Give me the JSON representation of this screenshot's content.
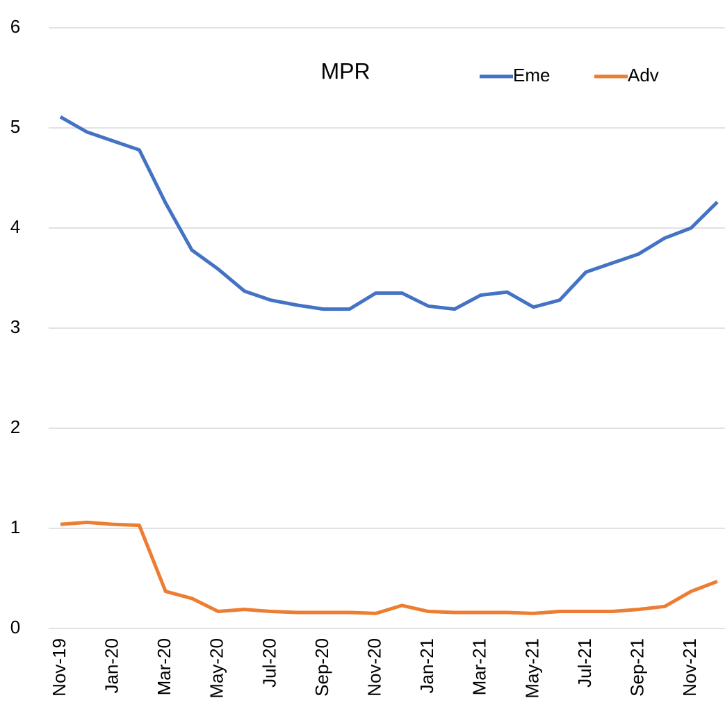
{
  "chart_data": {
    "type": "line",
    "title": "MPR",
    "categories": [
      "Nov-19",
      null,
      "Jan-20",
      null,
      "Mar-20",
      null,
      "May-20",
      null,
      "Jul-20",
      null,
      "Sep-20",
      null,
      "Nov-20",
      null,
      "Jan-21",
      null,
      "Mar-21",
      null,
      "May-21",
      null,
      "Jul-21",
      null,
      "Sep-21",
      null,
      "Nov-21",
      null
    ],
    "series": [
      {
        "name": "Eme",
        "color": "#4472c4",
        "values": [
          5.11,
          4.96,
          4.87,
          4.78,
          4.25,
          3.78,
          3.59,
          3.37,
          3.28,
          3.23,
          3.19,
          3.19,
          3.35,
          3.35,
          3.22,
          3.19,
          3.33,
          3.36,
          3.21,
          3.28,
          3.56,
          3.65,
          3.74,
          3.9,
          4.0,
          4.26
        ]
      },
      {
        "name": "Adv",
        "color": "#ed7d31",
        "values": [
          1.04,
          1.06,
          1.04,
          1.03,
          0.37,
          0.3,
          0.17,
          0.19,
          0.17,
          0.16,
          0.16,
          0.16,
          0.15,
          0.23,
          0.17,
          0.16,
          0.16,
          0.16,
          0.15,
          0.17,
          0.17,
          0.17,
          0.19,
          0.22,
          0.37,
          0.47
        ]
      }
    ],
    "ylim": [
      0,
      6
    ],
    "yticks": [
      0,
      1,
      2,
      3,
      4,
      5,
      6
    ],
    "grid": true,
    "legend": "top-right"
  }
}
